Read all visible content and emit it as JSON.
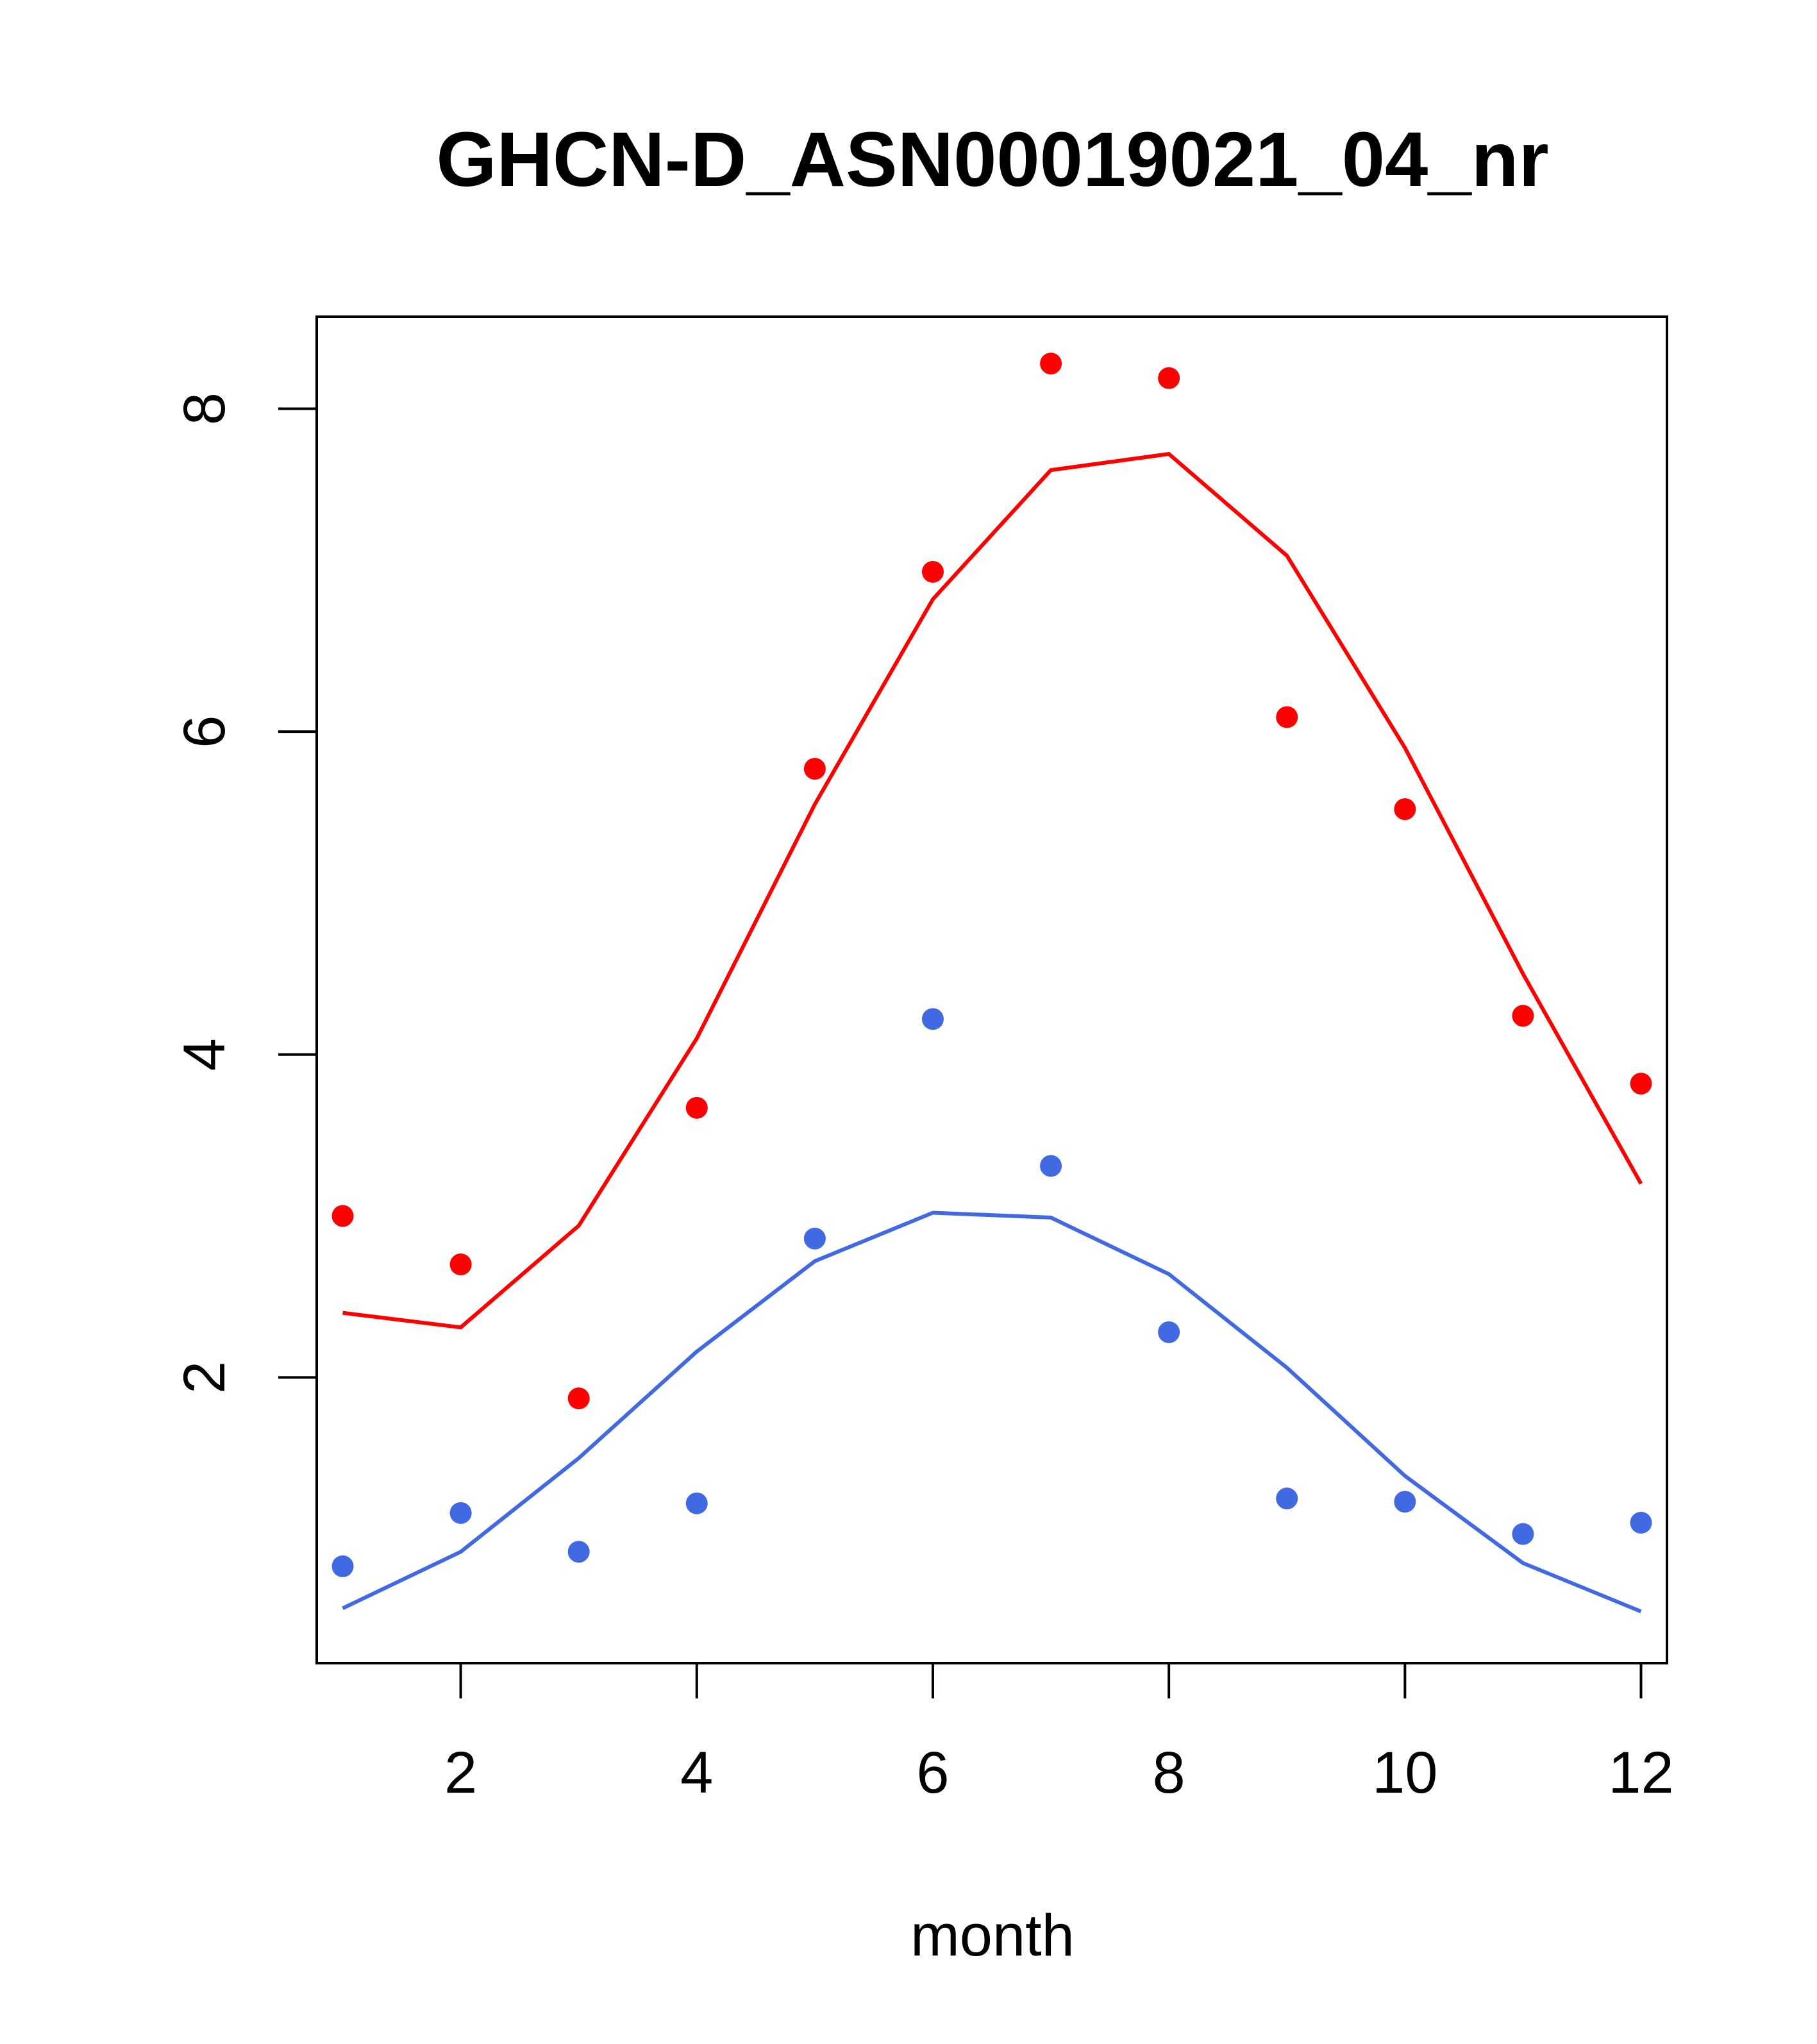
{
  "chart_data": {
    "type": "scatter",
    "title": "GHCN-D_ASN00019021_04_nr",
    "xlabel": "month",
    "ylabel": "",
    "xlim": [
      0.78,
      12.22
    ],
    "ylim": [
      0.23,
      8.57
    ],
    "x_ticks": [
      2,
      4,
      6,
      8,
      10,
      12
    ],
    "y_ticks": [
      2,
      4,
      6,
      8
    ],
    "x": [
      1,
      2,
      3,
      4,
      5,
      6,
      7,
      8,
      9,
      10,
      11,
      12
    ],
    "series": [
      {
        "color": "#ff0000",
        "points": [
          3.0,
          2.7,
          1.87,
          3.67,
          5.77,
          6.99,
          8.28,
          8.19,
          6.09,
          5.52,
          4.24,
          3.82
        ],
        "line": [
          2.4,
          2.31,
          2.94,
          4.1,
          5.55,
          6.82,
          7.62,
          7.72,
          7.09,
          5.9,
          4.5,
          3.2
        ]
      },
      {
        "color": "#4169e1",
        "points": [
          0.83,
          1.16,
          0.92,
          1.22,
          2.86,
          4.22,
          3.31,
          2.28,
          1.25,
          1.23,
          1.03,
          1.1
        ],
        "line": [
          0.57,
          0.92,
          1.5,
          2.16,
          2.72,
          3.02,
          2.99,
          2.64,
          2.06,
          1.39,
          0.85,
          0.55
        ]
      }
    ],
    "grid": false,
    "legend": "none"
  }
}
